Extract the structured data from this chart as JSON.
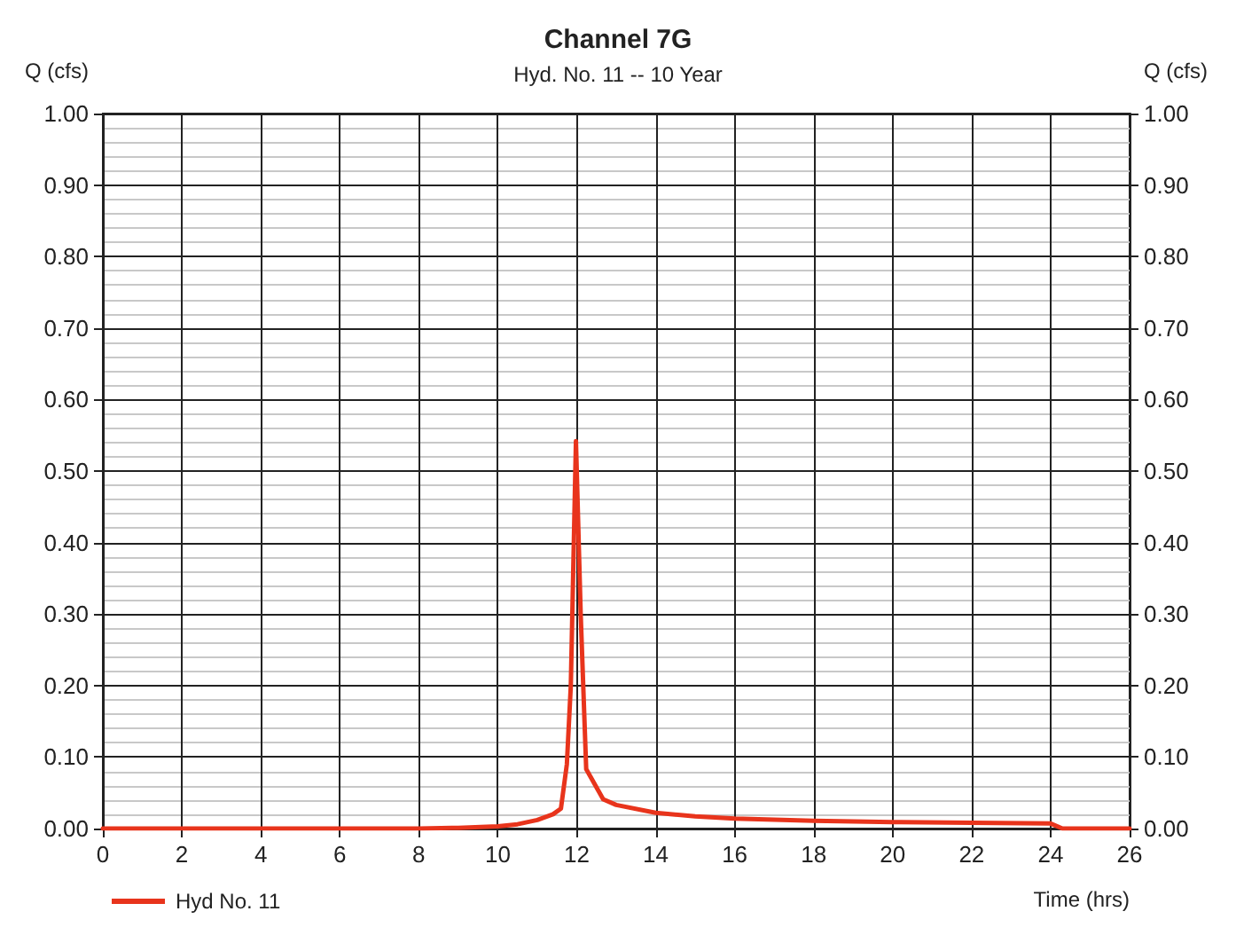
{
  "chart_data": {
    "type": "line",
    "title": "Channel 7G",
    "subtitle": "Hyd. No. 11 -- 10 Year",
    "xlabel": "Time (hrs)",
    "ylabel": "Q (cfs)",
    "y2label": "Q (cfs)",
    "xlim": [
      0,
      26
    ],
    "xticks": [
      0,
      2,
      4,
      6,
      8,
      10,
      12,
      14,
      16,
      18,
      20,
      22,
      24,
      26
    ],
    "ylim": [
      0,
      1
    ],
    "yticks": [
      {
        "value": 0,
        "label": "0.00"
      },
      {
        "value": 0.1,
        "label": "0.10"
      },
      {
        "value": 0.2,
        "label": "0.20"
      },
      {
        "value": 0.3,
        "label": "0.30"
      },
      {
        "value": 0.4,
        "label": "0.40"
      },
      {
        "value": 0.5,
        "label": "0.50"
      },
      {
        "value": 0.6,
        "label": "0.60"
      },
      {
        "value": 0.7,
        "label": "0.70"
      },
      {
        "value": 0.8,
        "label": "0.80"
      },
      {
        "value": 0.9,
        "label": "0.90"
      },
      {
        "value": 1,
        "label": "1.00"
      }
    ],
    "y2lim": [
      0,
      1
    ],
    "y2ticks": [
      {
        "value": 0,
        "label": "0.00"
      },
      {
        "value": 0.1,
        "label": "0.10"
      },
      {
        "value": 0.2,
        "label": "0.20"
      },
      {
        "value": 0.3,
        "label": "0.30"
      },
      {
        "value": 0.4,
        "label": "0.40"
      },
      {
        "value": 0.5,
        "label": "0.50"
      },
      {
        "value": 0.6,
        "label": "0.60"
      },
      {
        "value": 0.7,
        "label": "0.70"
      },
      {
        "value": 0.8,
        "label": "0.80"
      },
      {
        "value": 0.9,
        "label": "0.90"
      },
      {
        "value": 1,
        "label": "1.00"
      }
    ],
    "grid": true,
    "legend": "bottom left",
    "marker": "none",
    "line_style": "solid",
    "series": [
      {
        "name": "Hyd No. 11",
        "color": "#e8341c",
        "x": [
          0,
          8,
          9,
          10,
          10.5,
          11,
          11.4,
          11.6,
          11.75,
          11.85,
          11.98,
          12.1,
          12.24,
          12.67,
          13,
          14,
          15,
          16,
          18,
          20,
          22,
          24,
          24.3,
          26
        ],
        "values": [
          0,
          0,
          0.001,
          0.003,
          0.006,
          0.012,
          0.02,
          0.028,
          0.09,
          0.2,
          0.542,
          0.3,
          0.083,
          0.041,
          0.033,
          0.022,
          0.017,
          0.014,
          0.011,
          0.009,
          0.008,
          0.007,
          0,
          0
        ]
      }
    ]
  }
}
